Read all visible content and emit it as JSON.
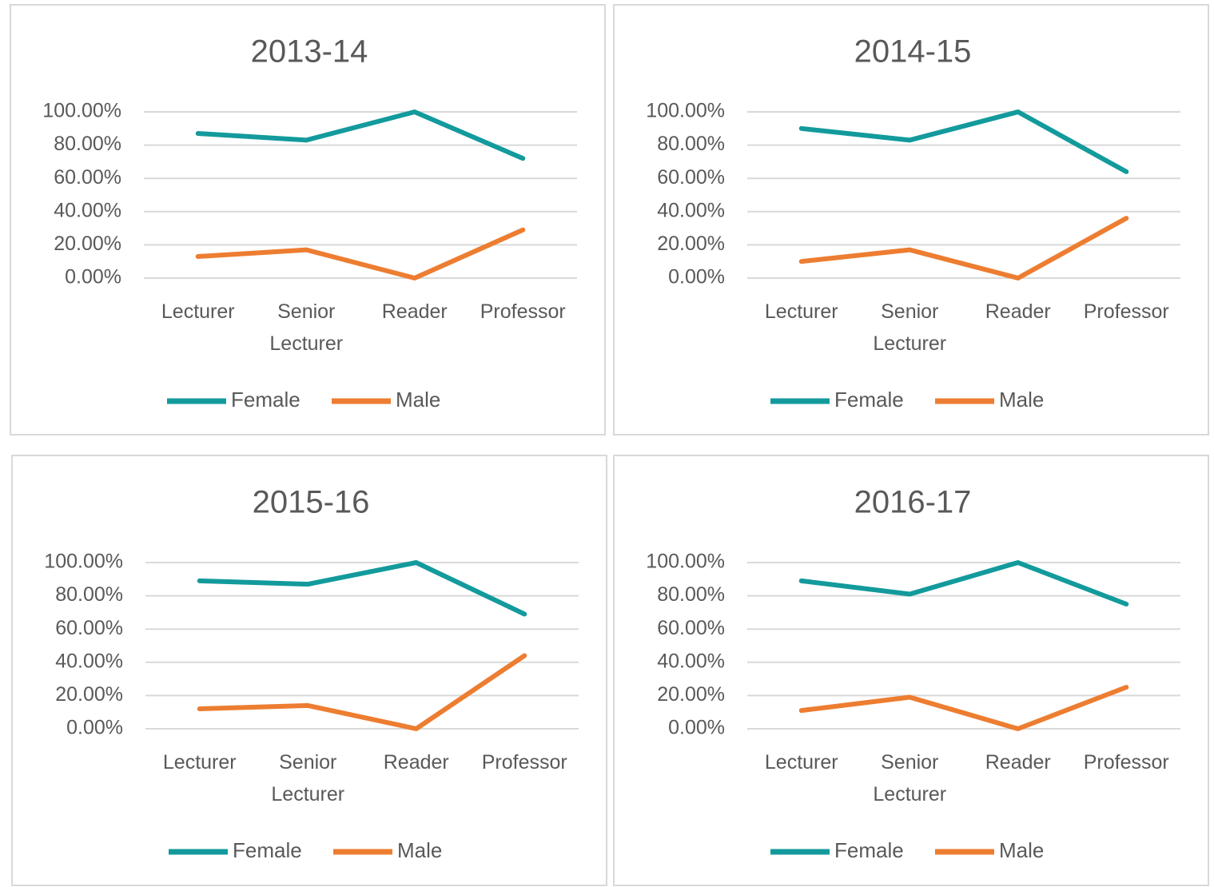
{
  "chart_data": [
    {
      "type": "line",
      "title": "2013-14",
      "categories": [
        "Lecturer",
        "Senior Lecturer",
        "Reader",
        "Professor"
      ],
      "series": [
        {
          "name": "Female",
          "color": "#139a9c",
          "values": [
            87,
            83,
            100,
            72
          ]
        },
        {
          "name": "Male",
          "color": "#ed7d31",
          "values": [
            13,
            17,
            0,
            29
          ]
        }
      ],
      "ylim": [
        0,
        100
      ],
      "yticks": [
        {
          "value": 0,
          "label": "0.00%"
        },
        {
          "value": 20,
          "label": "20.00%"
        },
        {
          "value": 40,
          "label": "40.00%"
        },
        {
          "value": 60,
          "label": "60.00%"
        },
        {
          "value": 80,
          "label": "80.00%"
        },
        {
          "value": 100,
          "label": "100.00%"
        }
      ],
      "grid": true,
      "legend": "bottom"
    },
    {
      "type": "line",
      "title": "2014-15",
      "categories": [
        "Lecturer",
        "Senior Lecturer",
        "Reader",
        "Professor"
      ],
      "series": [
        {
          "name": "Female",
          "color": "#139a9c",
          "values": [
            90,
            83,
            100,
            64
          ]
        },
        {
          "name": "Male",
          "color": "#ed7d31",
          "values": [
            10,
            17,
            0,
            36
          ]
        }
      ],
      "ylim": [
        0,
        100
      ],
      "yticks": [
        {
          "value": 0,
          "label": "0.00%"
        },
        {
          "value": 20,
          "label": "20.00%"
        },
        {
          "value": 40,
          "label": "40.00%"
        },
        {
          "value": 60,
          "label": "60.00%"
        },
        {
          "value": 80,
          "label": "80.00%"
        },
        {
          "value": 100,
          "label": "100.00%"
        }
      ],
      "grid": true,
      "legend": "bottom"
    },
    {
      "type": "line",
      "title": "2015-16",
      "categories": [
        "Lecturer",
        "Senior Lecturer",
        "Reader",
        "Professor"
      ],
      "series": [
        {
          "name": "Female",
          "color": "#139a9c",
          "values": [
            89,
            87,
            100,
            69
          ]
        },
        {
          "name": "Male",
          "color": "#ed7d31",
          "values": [
            12,
            14,
            0,
            44
          ]
        }
      ],
      "ylim": [
        0,
        100
      ],
      "yticks": [
        {
          "value": 0,
          "label": "0.00%"
        },
        {
          "value": 20,
          "label": "20.00%"
        },
        {
          "value": 40,
          "label": "40.00%"
        },
        {
          "value": 60,
          "label": "60.00%"
        },
        {
          "value": 80,
          "label": "80.00%"
        },
        {
          "value": 100,
          "label": "100.00%"
        }
      ],
      "grid": true,
      "legend": "bottom"
    },
    {
      "type": "line",
      "title": "2016-17",
      "categories": [
        "Lecturer",
        "Senior Lecturer",
        "Reader",
        "Professor"
      ],
      "series": [
        {
          "name": "Female",
          "color": "#139a9c",
          "values": [
            89,
            81,
            100,
            75
          ]
        },
        {
          "name": "Male",
          "color": "#ed7d31",
          "values": [
            11,
            19,
            0,
            25
          ]
        }
      ],
      "ylim": [
        0,
        100
      ],
      "yticks": [
        {
          "value": 0,
          "label": "0.00%"
        },
        {
          "value": 20,
          "label": "20.00%"
        },
        {
          "value": 40,
          "label": "40.00%"
        },
        {
          "value": 60,
          "label": "60.00%"
        },
        {
          "value": 80,
          "label": "80.00%"
        },
        {
          "value": 100,
          "label": "100.00%"
        }
      ],
      "grid": true,
      "legend": "bottom"
    }
  ]
}
